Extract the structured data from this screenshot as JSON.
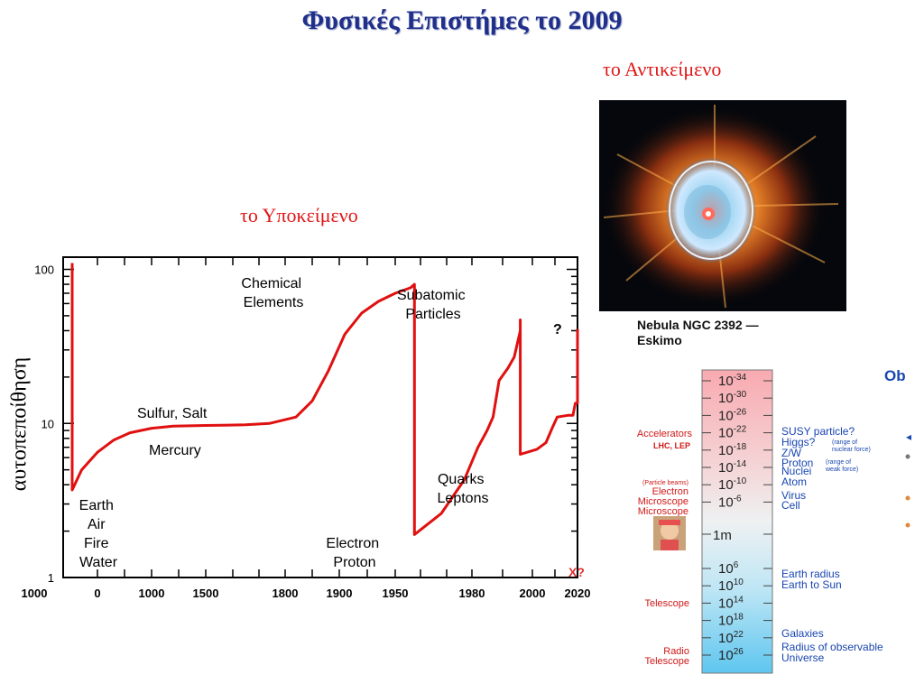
{
  "page": {
    "title": "Φυσικές Επιστήμες το 2009",
    "object_label": "το Αντικείμενο",
    "subject_label": "το Υποκείμενο",
    "image_caption_line1": "Nebula NGC 2392 —",
    "image_caption_line2": "Eskimo"
  },
  "chart_data": {
    "type": "line",
    "title": "",
    "ylabel": "αυτοπεποίθηση",
    "xlabel": "",
    "yscale": "log",
    "ylim": [
      1,
      120
    ],
    "x_ticks": [
      "1000",
      "0",
      "1000",
      "1500",
      "1800",
      "1900",
      "1950",
      "1980",
      "2000",
      "2020"
    ],
    "y_ticks": [
      "1",
      "10",
      "100"
    ],
    "series": [
      {
        "color": "#e01010",
        "points": [
          [
            0.6,
            110
          ],
          [
            0.6,
            3.7
          ],
          [
            0.75,
            5
          ],
          [
            1,
            6.5
          ],
          [
            1.3,
            7.8
          ],
          [
            1.6,
            8.7
          ],
          [
            2,
            9.3
          ],
          [
            2.4,
            9.6
          ],
          [
            3,
            9.7
          ],
          [
            3.5,
            9.8
          ],
          [
            3.8,
            10
          ],
          [
            4.2,
            11
          ],
          [
            4.5,
            14
          ],
          [
            4.8,
            22
          ],
          [
            5.1,
            38
          ],
          [
            5.4,
            52
          ],
          [
            5.7,
            62
          ],
          [
            6,
            70
          ],
          [
            6.2,
            76
          ],
          [
            6.25,
            80
          ],
          [
            6.25,
            1.9
          ],
          [
            6.6,
            2.6
          ],
          [
            6.9,
            4.3
          ],
          [
            7.1,
            7
          ],
          [
            7.25,
            9
          ],
          [
            7.35,
            11
          ],
          [
            7.45,
            19
          ],
          [
            7.6,
            23
          ],
          [
            7.7,
            27
          ],
          [
            7.8,
            40
          ],
          [
            7.8,
            47
          ],
          [
            7.8,
            6.3
          ],
          [
            8.1,
            6.8
          ],
          [
            8.3,
            7.5
          ],
          [
            8.45,
            9.5
          ],
          [
            8.55,
            11
          ],
          [
            8.8,
            11.3
          ],
          [
            8.9,
            11.3
          ],
          [
            8.95,
            13.5
          ],
          [
            9.2,
            13.6
          ],
          [
            9.4,
            13.7
          ],
          [
            9.5,
            14.6
          ],
          [
            9.85,
            14.7
          ],
          [
            9.9,
            14.8
          ],
          [
            10,
            18
          ],
          [
            10.1,
            27
          ],
          [
            10.15,
            37
          ],
          [
            10.3,
            41
          ],
          [
            10.65,
            41
          ]
        ]
      }
    ],
    "annotations": [
      {
        "line1": "Earth",
        "line2": "Air",
        "line3": "Fire",
        "line4": "Water"
      },
      {
        "line1": "Sulfur, Salt"
      },
      {
        "line1": "Mercury"
      },
      {
        "line1": "Chemical",
        "line2": "Elements"
      },
      {
        "line1": "Electron",
        "line2": "Proton"
      },
      {
        "line1": "Subatomic",
        "line2": "Particles"
      },
      {
        "line1": "Quarks",
        "line2": "Leptons"
      },
      {
        "line1": "?"
      }
    ],
    "corner_marker": "X?"
  },
  "scale": {
    "exp_labels": [
      "-34",
      "-30",
      "-26",
      "-22",
      "-18",
      "-14",
      "-10",
      "-6",
      "6",
      "10",
      "14",
      "18",
      "22",
      "26"
    ],
    "base": "10",
    "middle_label": "1m",
    "left_labels": {
      "accelerators": "Accelerators",
      "lhc_lep": "LHC, LEP",
      "particle_beams": "(Particle beams)",
      "electron": "Electron",
      "microscope1": "Microscope",
      "microscope2": "Microscope",
      "telescope": "Telescope",
      "radio": "Radio",
      "radio_telescope": "Telescope"
    },
    "right_labels": {
      "susy": "SUSY particle?",
      "higgs": "Higgs?",
      "nuclear_note1": "(range of",
      "nuclear_note2": "nuclear force)",
      "zw": "Z/W",
      "proton": "Proton",
      "weak_note1": "(range of",
      "weak_note2": "weak force)",
      "nuclei": "Nuclei",
      "atom": "Atom",
      "virus": "Virus",
      "cell": "Cell",
      "earth_radius": "Earth radius",
      "earth_sun": "Earth to Sun",
      "galaxies": "Galaxies",
      "radius_obs": "Radius of observable",
      "universe": "Universe"
    },
    "ob_label": "Ob"
  }
}
